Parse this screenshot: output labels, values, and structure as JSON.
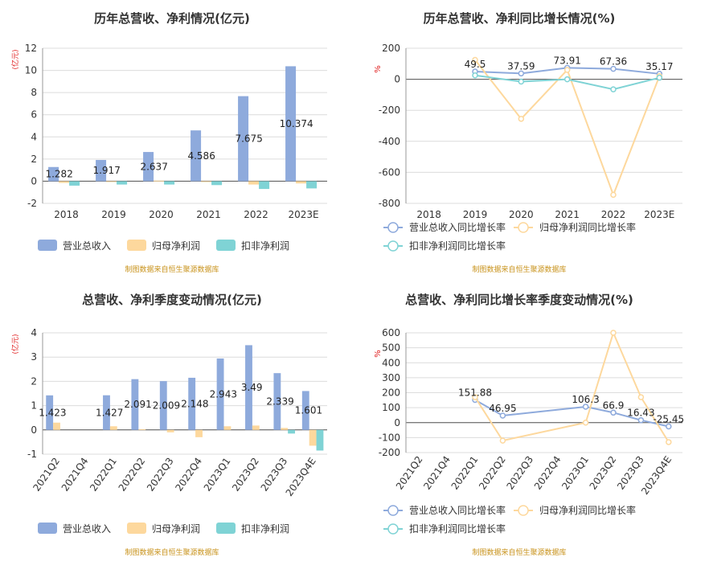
{
  "colors": {
    "revenue": "#8eaadc",
    "net_profit": "#fdd89d",
    "deducted_profit": "#7fd3d5",
    "axis_unit": "#e02020",
    "source": "#c8921a",
    "title": "#333333",
    "grid": "#dcdcdc"
  },
  "source_note": "制图数据来自恒生聚源数据库",
  "chart_data": [
    {
      "id": "annual-value",
      "type": "bar",
      "title": "历年总营收、净利情况(亿元)",
      "ylabel": "(亿元)",
      "ylim": [
        -2,
        12
      ],
      "yticks": [
        -2,
        0,
        2,
        4,
        6,
        8,
        10,
        12
      ],
      "grid": true,
      "legend_position": "bottom",
      "categories": [
        "2018",
        "2019",
        "2020",
        "2021",
        "2022",
        "2023E"
      ],
      "series": [
        {
          "name": "营业总收入",
          "values": [
            1.282,
            1.917,
            2.637,
            4.586,
            7.675,
            10.374
          ],
          "labels": [
            "1.282",
            "1.917",
            "2.637",
            "4.586",
            "7.675",
            "10.374"
          ]
        },
        {
          "name": "归母净利润",
          "values": [
            -0.15,
            -0.05,
            0.05,
            -0.05,
            -0.3,
            -0.2
          ]
        },
        {
          "name": "扣非净利润",
          "values": [
            -0.4,
            -0.3,
            -0.3,
            -0.35,
            -0.7,
            -0.65
          ]
        }
      ]
    },
    {
      "id": "annual-growth",
      "type": "line",
      "title": "历年总营收、净利同比增长情况(%)",
      "ylabel": "%",
      "ylim": [
        -800,
        200
      ],
      "yticks": [
        -800,
        -600,
        -400,
        -200,
        0,
        200
      ],
      "grid": true,
      "legend_position": "bottom",
      "categories": [
        "2018",
        "2019",
        "2020",
        "2021",
        "2022",
        "2023E"
      ],
      "series": [
        {
          "name": "营业总收入同比增长率",
          "values": [
            null,
            49.5,
            37.59,
            73.91,
            67.36,
            35.17
          ],
          "labels": [
            "",
            "49.5",
            "37.59",
            "73.91",
            "67.36",
            "35.17"
          ]
        },
        {
          "name": "归母净利润同比增长率",
          "values": [
            null,
            125,
            -255,
            60,
            -745,
            20
          ]
        },
        {
          "name": "扣非净利润同比增长率",
          "values": [
            null,
            25,
            -15,
            0,
            -65,
            10
          ]
        }
      ]
    },
    {
      "id": "quarterly-value",
      "type": "bar",
      "title": "总营收、净利季度变动情况(亿元)",
      "ylabel": "(亿元)",
      "ylim": [
        -1,
        4
      ],
      "yticks": [
        -1,
        0,
        1,
        2,
        3,
        4
      ],
      "grid": true,
      "legend_position": "bottom",
      "categories": [
        "2021Q2",
        "2021Q4",
        "2022Q1",
        "2022Q2",
        "2022Q3",
        "2022Q4",
        "2023Q1",
        "2023Q2",
        "2023Q3",
        "2023Q4E"
      ],
      "series": [
        {
          "name": "营业总收入",
          "values": [
            1.423,
            null,
            1.427,
            2.091,
            2.009,
            2.148,
            2.943,
            3.49,
            2.339,
            1.601
          ],
          "labels": [
            "1.423",
            "",
            "1.427",
            "2.091",
            "2.009",
            "2.148",
            "2.943",
            "3.49",
            "2.339",
            "1.601"
          ]
        },
        {
          "name": "归母净利润",
          "values": [
            0.3,
            null,
            0.15,
            0.03,
            -0.1,
            -0.3,
            0.15,
            0.18,
            0.08,
            -0.65
          ]
        },
        {
          "name": "扣非净利润",
          "values": [
            null,
            null,
            null,
            null,
            null,
            null,
            null,
            null,
            -0.15,
            -0.85
          ]
        }
      ]
    },
    {
      "id": "quarterly-growth",
      "type": "line",
      "title": "总营收、净利同比增长率季度变动情况(%)",
      "ylabel": "%",
      "ylim": [
        -200,
        600
      ],
      "yticks": [
        -200,
        -100,
        0,
        100,
        200,
        300,
        400,
        500,
        600
      ],
      "grid": true,
      "legend_position": "bottom",
      "categories": [
        "2021Q2",
        "2021Q4",
        "2022Q1",
        "2022Q2",
        "2022Q3",
        "2022Q4",
        "2023Q1",
        "2023Q2",
        "2023Q3",
        "2023Q4E"
      ],
      "series": [
        {
          "name": "营业总收入同比增长率",
          "values": [
            null,
            null,
            151.88,
            46.95,
            null,
            null,
            106.3,
            66.9,
            16.43,
            -25.45
          ],
          "labels": [
            "",
            "",
            "151.88",
            "46.95",
            "",
            "",
            "106.3",
            "66.9",
            "16.43",
            "-25.45"
          ]
        },
        {
          "name": "归母净利润同比增长率",
          "values": [
            null,
            null,
            170,
            -120,
            null,
            null,
            0,
            600,
            170,
            -130
          ]
        },
        {
          "name": "扣非净利润同比增长率",
          "values": [
            null,
            null,
            null,
            null,
            null,
            null,
            null,
            null,
            null,
            null
          ]
        }
      ]
    }
  ]
}
